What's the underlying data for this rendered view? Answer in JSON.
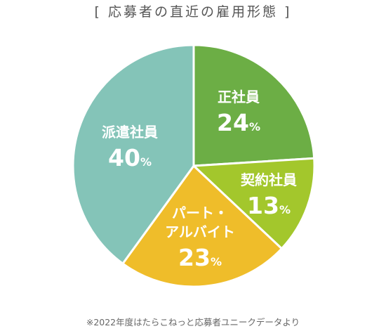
{
  "chart_data": {
    "type": "pie",
    "title": "[ 応募者の直近の雇用形態 ]",
    "note": "※2022年度はたらこねっと応募者ユニークデータより",
    "unit": "%",
    "slices": [
      {
        "name_lines": [
          "正社員"
        ],
        "value": 24,
        "color": "#6cae45"
      },
      {
        "name_lines": [
          "契約社員"
        ],
        "value": 13,
        "color": "#a3c72c"
      },
      {
        "name_lines": [
          "パート・",
          "アルバイト"
        ],
        "value": 23,
        "color": "#efbd2a"
      },
      {
        "name_lines": [
          "派遣社員"
        ],
        "value": 40,
        "color": "#84c4b8"
      }
    ]
  }
}
